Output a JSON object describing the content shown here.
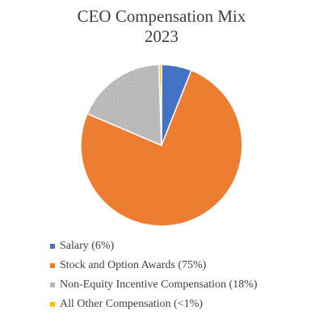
{
  "chart_data": {
    "type": "pie",
    "title": "CEO Compensation Mix",
    "subtitle": "2023",
    "start_angle_deg": 0,
    "direction": "clockwise",
    "legend_position": "bottom",
    "slices": [
      {
        "label": "Salary (6%)",
        "value": 6,
        "color": "#4472c4",
        "pattern": "solid"
      },
      {
        "label": "Stock and Option Awards (75%)",
        "value": 75,
        "color": "#ed7d31",
        "pattern": "solid"
      },
      {
        "label": "Non-Equity Incentive Compensation (18%)",
        "value": 18,
        "color": "#a5a5a5",
        "pattern": "hatched"
      },
      {
        "label": "All Other Compensation (<1%)",
        "value": 0.5,
        "color": "#ffc000",
        "pattern": "solid"
      }
    ]
  }
}
